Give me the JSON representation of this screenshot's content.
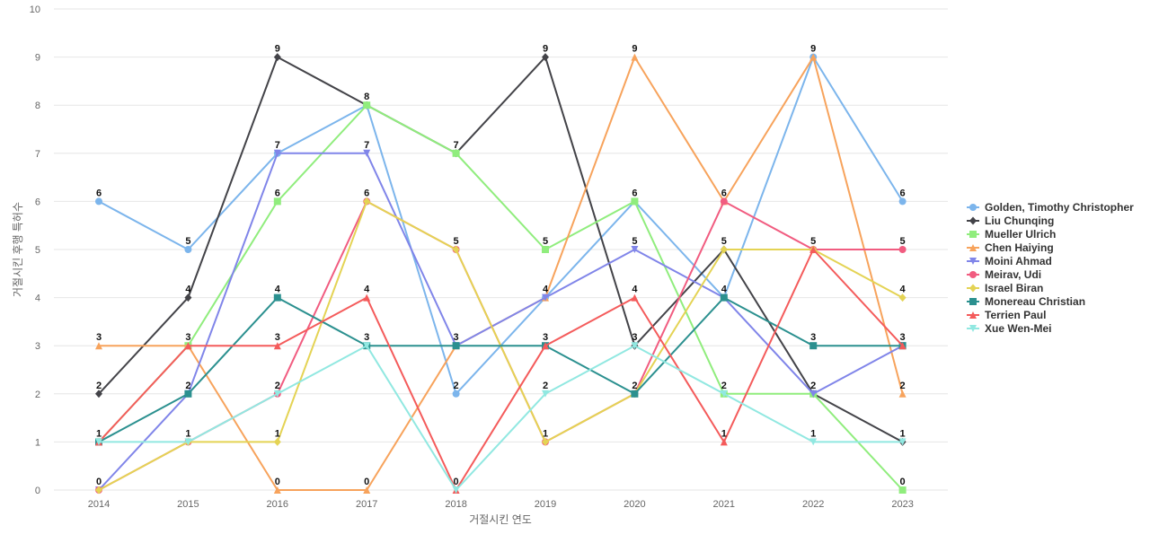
{
  "chart_data": {
    "type": "line",
    "title": "",
    "xlabel": "거절시킨 연도",
    "ylabel": "거절시킨 후행 특허수",
    "ylim": [
      0,
      10
    ],
    "yticks": [
      0,
      1,
      2,
      3,
      4,
      5,
      6,
      7,
      8,
      9,
      10
    ],
    "categories": [
      "2014",
      "2015",
      "2016",
      "2017",
      "2018",
      "2019",
      "2020",
      "2021",
      "2022",
      "2023"
    ],
    "legend_position": "right",
    "series": [
      {
        "name": "Golden, Timothy Christopher",
        "color": "#7cb5ec",
        "marker": "circle",
        "values": [
          6,
          5,
          7,
          8,
          2,
          4,
          6,
          4,
          9,
          6
        ]
      },
      {
        "name": "Liu Chunqing",
        "color": "#434348",
        "marker": "diamond",
        "values": [
          2,
          4,
          9,
          8,
          7,
          9,
          3,
          5,
          2,
          1
        ]
      },
      {
        "name": "Mueller Ulrich",
        "color": "#90ed7d",
        "marker": "square",
        "values": [
          1,
          3,
          6,
          8,
          7,
          5,
          6,
          2,
          2,
          0
        ]
      },
      {
        "name": "Chen Haiying",
        "color": "#f7a35c",
        "marker": "triangle",
        "values": [
          3,
          3,
          0,
          0,
          3,
          4,
          9,
          6,
          9,
          2
        ]
      },
      {
        "name": "Moini Ahmad",
        "color": "#8085e9",
        "marker": "triangle-down",
        "values": [
          0,
          2,
          7,
          7,
          3,
          4,
          5,
          4,
          2,
          3
        ]
      },
      {
        "name": "Meirav, Udi",
        "color": "#f15c80",
        "marker": "circle",
        "values": [
          0,
          1,
          2,
          6,
          5,
          1,
          2,
          6,
          5,
          5
        ]
      },
      {
        "name": "Israel Biran",
        "color": "#e4d354",
        "marker": "diamond",
        "values": [
          0,
          1,
          1,
          6,
          5,
          1,
          2,
          5,
          5,
          4
        ]
      },
      {
        "name": "Monereau Christian",
        "color": "#2b908f",
        "marker": "square",
        "values": [
          1,
          2,
          4,
          3,
          3,
          3,
          2,
          4,
          3,
          3
        ]
      },
      {
        "name": "Terrien Paul",
        "color": "#f45b5b",
        "marker": "triangle",
        "values": [
          1,
          3,
          3,
          4,
          0,
          3,
          4,
          1,
          5,
          3
        ]
      },
      {
        "name": "Xue Wen-Mei",
        "color": "#91e8e1",
        "marker": "triangle-down",
        "values": [
          1,
          1,
          2,
          3,
          0,
          2,
          3,
          2,
          1,
          1
        ]
      }
    ],
    "point_labels": [
      {
        "category": "2014",
        "value": 6,
        "text": "6"
      },
      {
        "category": "2014",
        "value": 3,
        "text": "3"
      },
      {
        "category": "2014",
        "value": 2,
        "text": "2"
      },
      {
        "category": "2014",
        "value": 1,
        "text": "1"
      },
      {
        "category": "2014",
        "value": 0,
        "text": "0"
      },
      {
        "category": "2015",
        "value": 5,
        "text": "5"
      },
      {
        "category": "2015",
        "value": 4,
        "text": "4"
      },
      {
        "category": "2015",
        "value": 3,
        "text": "3"
      },
      {
        "category": "2015",
        "value": 2,
        "text": "2"
      },
      {
        "category": "2015",
        "value": 1,
        "text": "1"
      },
      {
        "category": "2016",
        "value": 9,
        "text": "9"
      },
      {
        "category": "2016",
        "value": 7,
        "text": "7"
      },
      {
        "category": "2016",
        "value": 6,
        "text": "6"
      },
      {
        "category": "2016",
        "value": 4,
        "text": "4"
      },
      {
        "category": "2016",
        "value": 3,
        "text": "3"
      },
      {
        "category": "2016",
        "value": 2,
        "text": "2"
      },
      {
        "category": "2016",
        "value": 1,
        "text": "1"
      },
      {
        "category": "2016",
        "value": 0,
        "text": "0"
      },
      {
        "category": "2017",
        "value": 8,
        "text": "8"
      },
      {
        "category": "2017",
        "value": 7,
        "text": "7"
      },
      {
        "category": "2017",
        "value": 6,
        "text": "6"
      },
      {
        "category": "2017",
        "value": 4,
        "text": "4"
      },
      {
        "category": "2017",
        "value": 3,
        "text": "3"
      },
      {
        "category": "2017",
        "value": 0,
        "text": "0"
      },
      {
        "category": "2018",
        "value": 7,
        "text": "7"
      },
      {
        "category": "2018",
        "value": 5,
        "text": "5"
      },
      {
        "category": "2018",
        "value": 3,
        "text": "3"
      },
      {
        "category": "2018",
        "value": 2,
        "text": "2"
      },
      {
        "category": "2018",
        "value": 0,
        "text": "0"
      },
      {
        "category": "2019",
        "value": 9,
        "text": "9"
      },
      {
        "category": "2019",
        "value": 5,
        "text": "5"
      },
      {
        "category": "2019",
        "value": 4,
        "text": "4"
      },
      {
        "category": "2019",
        "value": 3,
        "text": "3"
      },
      {
        "category": "2019",
        "value": 2,
        "text": "2"
      },
      {
        "category": "2019",
        "value": 1,
        "text": "1"
      },
      {
        "category": "2020",
        "value": 9,
        "text": "9"
      },
      {
        "category": "2020",
        "value": 6,
        "text": "6"
      },
      {
        "category": "2020",
        "value": 5,
        "text": "5"
      },
      {
        "category": "2020",
        "value": 4,
        "text": "4"
      },
      {
        "category": "2020",
        "value": 3,
        "text": "3"
      },
      {
        "category": "2020",
        "value": 2,
        "text": "2"
      },
      {
        "category": "2021",
        "value": 6,
        "text": "6"
      },
      {
        "category": "2021",
        "value": 5,
        "text": "5"
      },
      {
        "category": "2021",
        "value": 4,
        "text": "4"
      },
      {
        "category": "2021",
        "value": 2,
        "text": "2"
      },
      {
        "category": "2021",
        "value": 1,
        "text": "1"
      },
      {
        "category": "2022",
        "value": 9,
        "text": "9"
      },
      {
        "category": "2022",
        "value": 5,
        "text": "5"
      },
      {
        "category": "2022",
        "value": 3,
        "text": "3"
      },
      {
        "category": "2022",
        "value": 2,
        "text": "2"
      },
      {
        "category": "2022",
        "value": 1,
        "text": "1"
      },
      {
        "category": "2023",
        "value": 6,
        "text": "6"
      },
      {
        "category": "2023",
        "value": 5,
        "text": "5"
      },
      {
        "category": "2023",
        "value": 4,
        "text": "4"
      },
      {
        "category": "2023",
        "value": 3,
        "text": "3"
      },
      {
        "category": "2023",
        "value": 2,
        "text": "2"
      },
      {
        "category": "2023",
        "value": 1,
        "text": "1"
      },
      {
        "category": "2023",
        "value": 0,
        "text": "0"
      }
    ]
  }
}
